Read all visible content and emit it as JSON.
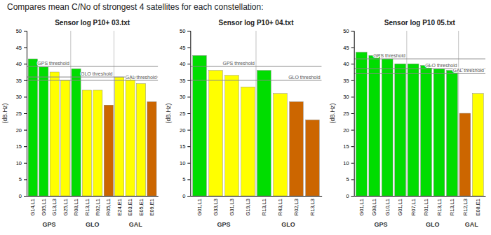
{
  "title": "Compares mean C/No of strongest 4 satellites for each constellation:",
  "chart_data": [
    {
      "type": "bar",
      "title": "Sensor log P10+ 03.txt",
      "ylabel": "(dB.Hz)",
      "categories": [
        "G14,L1",
        "G05,L1",
        "G13,L3",
        "G25,L1",
        "R08,L1",
        "R13,L1",
        "R02,L1",
        "R05,L1",
        "E24,E1",
        "E03,E1",
        "E05,E1",
        "E09,E1"
      ],
      "values": [
        41.5,
        39.0,
        37.5,
        35.0,
        38.5,
        32.0,
        32.0,
        27.5,
        36.0,
        35.5,
        34.0,
        28.5
      ],
      "colors": [
        "#00dd00",
        "#00dd00",
        "#ffff00",
        "#ffff00",
        "#00dd00",
        "#ffff00",
        "#ffff00",
        "#cc6600",
        "#ffff00",
        "#ffff00",
        "#ffff00",
        "#cc6600"
      ],
      "groups": [
        {
          "label": "GPS",
          "start": 0,
          "end": 4
        },
        {
          "label": "GLO",
          "start": 4,
          "end": 8
        },
        {
          "label": "GAL",
          "start": 8,
          "end": 12
        }
      ],
      "thresholds": [
        {
          "value": 39.2,
          "label": "GPS threshold"
        },
        {
          "value": 36.0,
          "label": "GLO threshold"
        },
        {
          "value": 35.0,
          "label": "GAL threshold"
        }
      ],
      "ylim": [
        0,
        50
      ],
      "yticks": [
        0,
        5,
        10,
        15,
        20,
        25,
        30,
        35,
        40,
        45,
        50
      ],
      "grid": false
    },
    {
      "type": "bar",
      "title": "Sensor log P10+ 04.txt",
      "ylabel": "(dB.Hz)",
      "categories": [
        "G01,L1",
        "G33,L3",
        "G31,L3",
        "G19,L3",
        "R13,L1",
        "R43,L1",
        "R02,L3",
        "R13,L3"
      ],
      "values": [
        42.5,
        38.0,
        36.5,
        33.0,
        38.0,
        31.0,
        28.5,
        23.0
      ],
      "colors": [
        "#00dd00",
        "#ffff00",
        "#ffff00",
        "#ffff00",
        "#00dd00",
        "#ffff00",
        "#cc6600",
        "#cc6600"
      ],
      "groups": [
        {
          "label": "GPS",
          "start": 0,
          "end": 4
        },
        {
          "label": "GLO",
          "start": 4,
          "end": 8
        }
      ],
      "thresholds": [
        {
          "value": 39.2,
          "label": "GPS threshold"
        },
        {
          "value": 35.0,
          "label": "GLO threshold"
        }
      ],
      "ylim": [
        0,
        50
      ],
      "yticks": [
        0,
        5,
        10,
        15,
        20,
        25,
        30,
        35,
        40,
        45,
        50
      ],
      "grid": false
    },
    {
      "type": "bar",
      "title": "Sensor log P10 05.txt",
      "ylabel": "(dB.Hz)",
      "categories": [
        "G01,L1",
        "G08,L1",
        "G10,L1",
        "G01,L1",
        "R07,L1",
        "R01,L1",
        "R13,L1",
        "R13,L1",
        "R12,L3",
        "E08,E1"
      ],
      "values": [
        43.5,
        42.5,
        41.5,
        40.0,
        40.0,
        39.5,
        38.5,
        38.0,
        25.0,
        31.0
      ],
      "colors": [
        "#00dd00",
        "#00dd00",
        "#00dd00",
        "#00dd00",
        "#00dd00",
        "#00dd00",
        "#00dd00",
        "#00dd00",
        "#cc6600",
        "#ffff00"
      ],
      "groups": [
        {
          "label": "GPS",
          "start": 0,
          "end": 4
        },
        {
          "label": "GLO",
          "start": 4,
          "end": 8
        },
        {
          "label": "GAL",
          "start": 8,
          "end": 10
        }
      ],
      "thresholds": [
        {
          "value": 41.5,
          "label": "GPS threshold"
        },
        {
          "value": 38.5,
          "label": "GLO threshold"
        },
        {
          "value": 37.0,
          "label": "GAL threshold"
        }
      ],
      "ylim": [
        0,
        50
      ],
      "yticks": [
        0,
        5,
        10,
        15,
        20,
        25,
        30,
        35,
        40,
        45,
        50
      ],
      "grid": false
    }
  ]
}
